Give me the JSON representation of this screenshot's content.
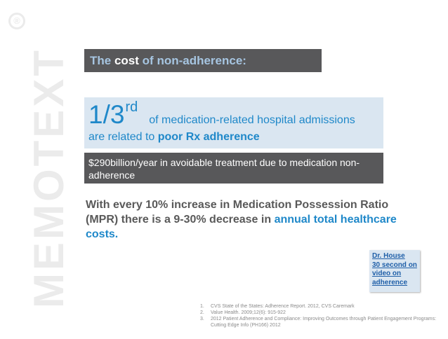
{
  "watermark": {
    "text": "MEMOTEXT",
    "registered": "®"
  },
  "title": {
    "prefix": "The",
    "strong": "cost",
    "suffix": "of non-adherence:"
  },
  "stat": {
    "fraction": "1/3",
    "superscript": "rd",
    "line1_rest": "of medication-related hospital admissions",
    "line2_prefix": "are related to",
    "line2_bold": "poor Rx adherence"
  },
  "cost_box": {
    "text": "$290billion/year in avoidable treatment due to medication non-adherence"
  },
  "mpr_statement": {
    "text": "With every 10% increase in Medication Possession Ratio (MPR) there is a 9-30% decrease in",
    "accent": "annual total healthcare costs."
  },
  "video_link": {
    "line1": "Dr. House",
    "line2": "30 second on",
    "line3": "video on",
    "line4": "adherence"
  },
  "references": [
    {
      "num": "1.",
      "text": "CVS State of the States: Adherence Report. 2012, CVS Caremark"
    },
    {
      "num": "2.",
      "text": "Value Health. 2009;12(6): 915-922"
    },
    {
      "num": "3.",
      "text": "2012 Patient Adherence and Compliance: Improving Outcomes through Patient Engagement Programs: Cutting Edge Info (PH166) 2012"
    }
  ],
  "colors": {
    "dark_box": "#58585a",
    "light_box": "#dae6f1",
    "accent_blue": "#1f88c9",
    "title_blue": "#a6c5e1",
    "body_grey": "#595959"
  }
}
